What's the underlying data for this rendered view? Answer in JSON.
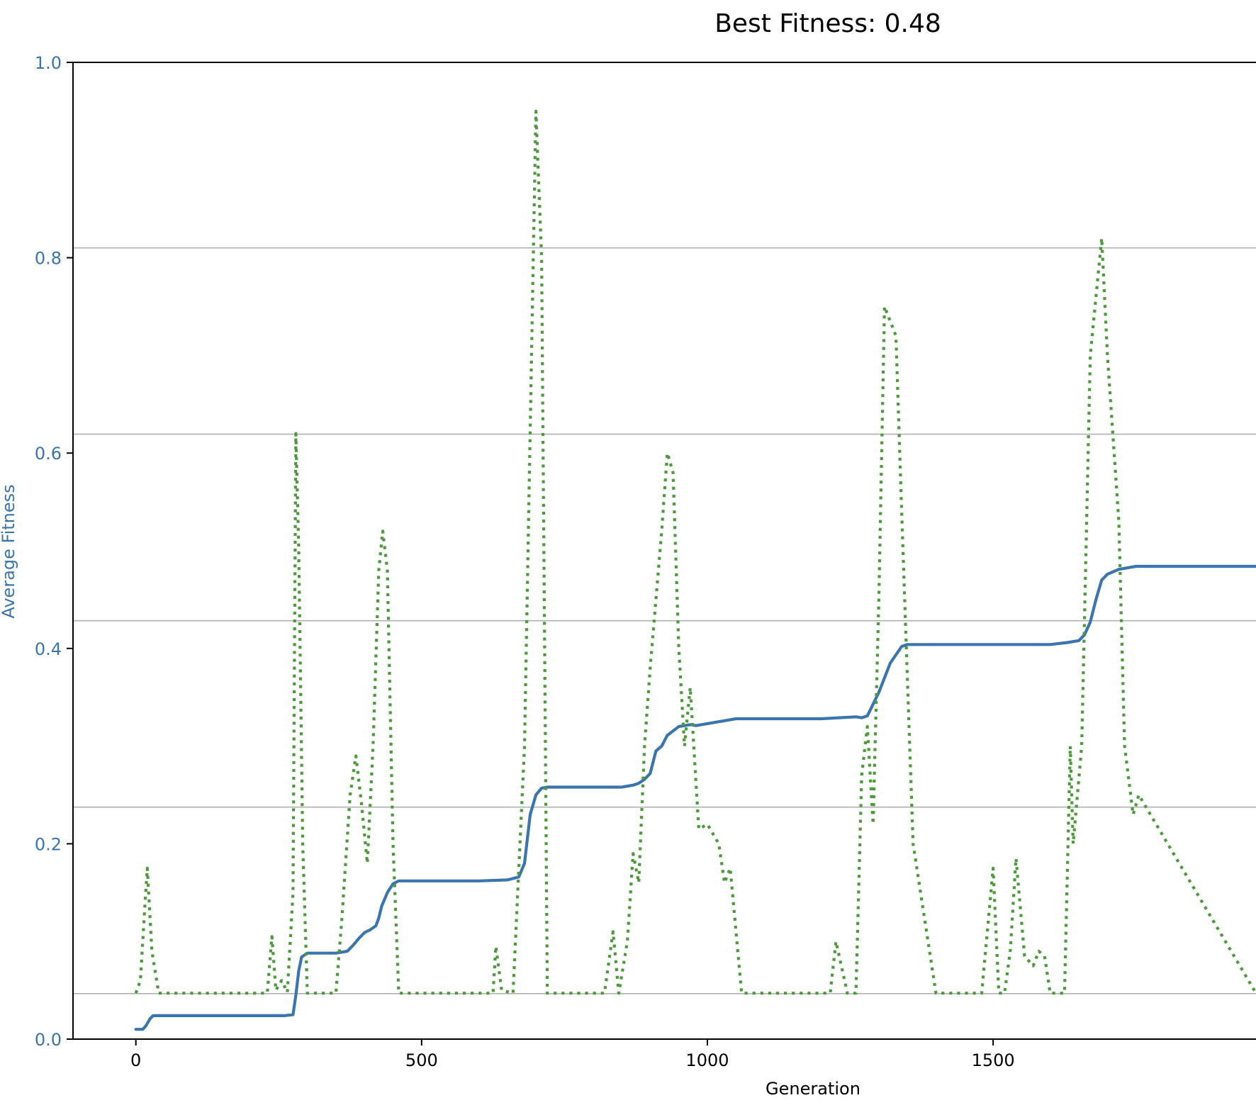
{
  "chart_data": {
    "type": "line",
    "title": "Best Fitness: 0.48",
    "xlabel": "Generation",
    "ylabel": "Average Fitness",
    "xlim": [
      -110,
      1960
    ],
    "ylim": [
      0.0,
      1.0
    ],
    "xticks": [
      0,
      500,
      1000,
      1500
    ],
    "yticks": [
      0.0,
      0.2,
      0.4,
      0.6,
      0.8,
      1.0
    ],
    "ytick_labels": [
      "0.0",
      "0.2",
      "0.4",
      "0.6",
      "0.8",
      "1.0"
    ],
    "ylabel_color": "#3A75AF",
    "grid": "horizontal lines from secondary axis (right side, cut off)",
    "secondary_grid_y": [
      0.0466,
      0.2375,
      0.4284,
      0.6193,
      0.8101
    ],
    "series": [
      {
        "color": "#3A75AF",
        "style": "solid",
        "x": [
          0,
          12,
          18,
          25,
          30,
          40,
          60,
          100,
          150,
          200,
          240,
          260,
          275,
          280,
          285,
          290,
          300,
          350,
          370,
          380,
          390,
          400,
          410,
          420,
          425,
          430,
          440,
          450,
          460,
          500,
          600,
          650,
          670,
          680,
          690,
          700,
          710,
          720,
          730,
          800,
          850,
          870,
          880,
          890,
          900,
          910,
          920,
          930,
          950,
          970,
          980,
          1000,
          1050,
          1100,
          1200,
          1260,
          1270,
          1280,
          1300,
          1320,
          1340,
          1350,
          1400,
          1500,
          1550,
          1600,
          1630,
          1650,
          1660,
          1670,
          1680,
          1690,
          1700,
          1720,
          1750,
          1800,
          1830,
          1960
        ],
        "values": [
          0.01,
          0.01,
          0.014,
          0.021,
          0.024,
          0.024,
          0.024,
          0.024,
          0.024,
          0.024,
          0.024,
          0.024,
          0.025,
          0.045,
          0.07,
          0.084,
          0.088,
          0.088,
          0.09,
          0.096,
          0.103,
          0.109,
          0.112,
          0.116,
          0.124,
          0.136,
          0.15,
          0.159,
          0.162,
          0.162,
          0.162,
          0.163,
          0.166,
          0.18,
          0.23,
          0.25,
          0.257,
          0.258,
          0.258,
          0.258,
          0.258,
          0.26,
          0.262,
          0.266,
          0.272,
          0.295,
          0.3,
          0.311,
          0.32,
          0.322,
          0.321,
          0.323,
          0.328,
          0.328,
          0.328,
          0.33,
          0.329,
          0.331,
          0.355,
          0.385,
          0.402,
          0.404,
          0.404,
          0.404,
          0.404,
          0.404,
          0.406,
          0.408,
          0.414,
          0.427,
          0.45,
          0.47,
          0.476,
          0.481,
          0.484,
          0.484,
          0.484,
          0.484
        ]
      },
      {
        "color": "#4C9A3B",
        "style": "dotted",
        "x": [
          0,
          8,
          14,
          20,
          28,
          40,
          100,
          200,
          230,
          238,
          245,
          255,
          265,
          275,
          280,
          285,
          292,
          300,
          310,
          320,
          350,
          360,
          375,
          385,
          395,
          405,
          415,
          425,
          432,
          440,
          450,
          460,
          480,
          600,
          625,
          630,
          640,
          660,
          680,
          700,
          710,
          720,
          740,
          800,
          820,
          835,
          845,
          860,
          870,
          880,
          890,
          900,
          920,
          930,
          940,
          950,
          960,
          970,
          985,
          1000,
          1010,
          1020,
          1030,
          1040,
          1060,
          1200,
          1215,
          1225,
          1245,
          1260,
          1270,
          1280,
          1290,
          1300,
          1310,
          1330,
          1340,
          1360,
          1400,
          1480,
          1490,
          1500,
          1510,
          1520,
          1530,
          1540,
          1555,
          1570,
          1580,
          1590,
          1600,
          1625,
          1635,
          1640,
          1655,
          1670,
          1690,
          1700,
          1720,
          1730,
          1745,
          1755,
          1960
        ],
        "values": [
          0.047,
          0.06,
          0.12,
          0.175,
          0.09,
          0.047,
          0.047,
          0.047,
          0.047,
          0.105,
          0.05,
          0.06,
          0.048,
          0.15,
          0.62,
          0.5,
          0.2,
          0.047,
          0.047,
          0.047,
          0.047,
          0.12,
          0.25,
          0.29,
          0.24,
          0.18,
          0.3,
          0.48,
          0.52,
          0.48,
          0.2,
          0.047,
          0.047,
          0.047,
          0.047,
          0.095,
          0.05,
          0.047,
          0.3,
          0.95,
          0.8,
          0.047,
          0.047,
          0.047,
          0.047,
          0.11,
          0.047,
          0.1,
          0.19,
          0.16,
          0.3,
          0.38,
          0.52,
          0.6,
          0.58,
          0.4,
          0.3,
          0.36,
          0.215,
          0.22,
          0.21,
          0.2,
          0.16,
          0.175,
          0.047,
          0.047,
          0.047,
          0.1,
          0.047,
          0.047,
          0.27,
          0.32,
          0.22,
          0.45,
          0.75,
          0.72,
          0.54,
          0.2,
          0.047,
          0.047,
          0.11,
          0.175,
          0.047,
          0.047,
          0.09,
          0.185,
          0.085,
          0.075,
          0.09,
          0.085,
          0.047,
          0.047,
          0.3,
          0.2,
          0.3,
          0.7,
          0.82,
          0.7,
          0.53,
          0.3,
          0.23,
          0.25,
          0.047
        ]
      }
    ]
  }
}
